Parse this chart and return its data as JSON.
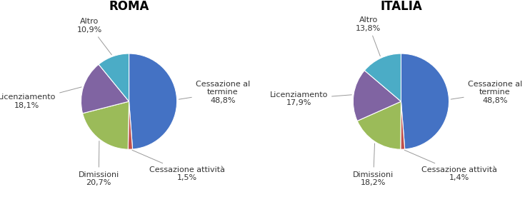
{
  "charts": [
    {
      "title": "ROMA",
      "labels": [
        "Cessazione al\ntermine",
        "Cessazione attività",
        "Dimissioni",
        "Licenziamento",
        "Altro"
      ],
      "values": [
        48.8,
        1.5,
        20.7,
        18.1,
        10.9
      ],
      "colors": [
        "#4472C4",
        "#C0504D",
        "#9BBB59",
        "#8064A2",
        "#4BACC6"
      ],
      "pct_texts": [
        "48,8%",
        "1,5%",
        "20,7%",
        "18,1%",
        "10,9%"
      ],
      "label_offsets": [
        [
          1.32,
          0.18,
          "left",
          "center"
        ],
        [
          1.15,
          -1.28,
          "center",
          "top"
        ],
        [
          -0.6,
          -1.38,
          "center",
          "top"
        ],
        [
          -1.45,
          0.0,
          "right",
          "center"
        ],
        [
          -0.78,
          1.35,
          "center",
          "bottom"
        ]
      ]
    },
    {
      "title": "ITALIA",
      "labels": [
        "Cessazione al\ntermine",
        "Cessazione attività",
        "Dimissioni",
        "Licenziamento",
        "Altro"
      ],
      "values": [
        48.8,
        1.4,
        18.2,
        17.9,
        13.8
      ],
      "colors": [
        "#4472C4",
        "#C0504D",
        "#9BBB59",
        "#8064A2",
        "#4BACC6"
      ],
      "pct_texts": [
        "48,8%",
        "1,4%",
        "18,2%",
        "17,9%",
        "13,8%"
      ],
      "label_offsets": [
        [
          1.32,
          0.18,
          "left",
          "center"
        ],
        [
          1.15,
          -1.28,
          "center",
          "top"
        ],
        [
          -0.55,
          -1.38,
          "center",
          "top"
        ],
        [
          -1.45,
          0.05,
          "right",
          "center"
        ],
        [
          -0.65,
          1.38,
          "center",
          "bottom"
        ]
      ]
    }
  ],
  "background_color": "#FFFFFF",
  "title_fontsize": 12,
  "label_fontsize": 8,
  "startangle": 90
}
